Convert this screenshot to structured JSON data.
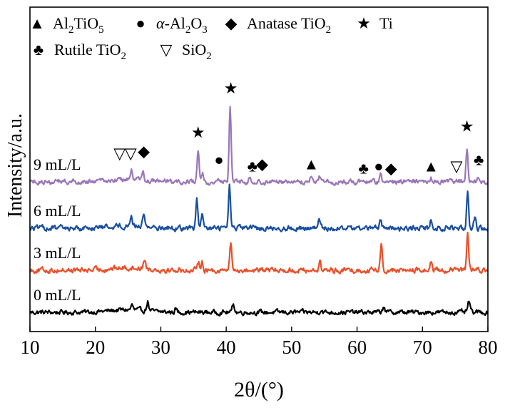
{
  "chart_data": {
    "type": "line",
    "xlabel": "2θ/(°)",
    "ylabel": "Intensity/a.u.",
    "xlim": [
      10,
      80
    ],
    "xticks": [
      10,
      20,
      30,
      40,
      50,
      60,
      70,
      80
    ],
    "yticks_shown": false,
    "legend": {
      "placement": "top-left",
      "entries": [
        {
          "symbol": "▲",
          "label": "Al2TiO5"
        },
        {
          "symbol": "●",
          "label": "α-Al2O3"
        },
        {
          "symbol": "◆",
          "label": "Anatase TiO2"
        },
        {
          "symbol": "★",
          "label": "Ti"
        },
        {
          "symbol": "♣",
          "label": "Rutile TiO2"
        },
        {
          "symbol": "▽",
          "label": "SiO2"
        }
      ]
    },
    "series": [
      {
        "name": "0 mL/L",
        "color": "#000000",
        "base": 0.0,
        "noise": 0.9,
        "peaks": [
          {
            "x": 25.6,
            "h": 2.2
          },
          {
            "x": 28.0,
            "h": 4.5
          },
          {
            "x": 32.3,
            "h": 1.6
          },
          {
            "x": 41.1,
            "h": 4.3
          },
          {
            "x": 54.5,
            "h": 1.4
          },
          {
            "x": 64.1,
            "h": 3.2
          },
          {
            "x": 77.1,
            "h": 5.5
          }
        ]
      },
      {
        "name": "3 mL/L",
        "color": "#e8502a",
        "base": 20.0,
        "noise": 1.0,
        "peaks": [
          {
            "x": 27.5,
            "h": 5.0
          },
          {
            "x": 35.8,
            "h": 4.0
          },
          {
            "x": 36.3,
            "h": 4.3
          },
          {
            "x": 40.7,
            "h": 13.0
          },
          {
            "x": 54.3,
            "h": 4.2
          },
          {
            "x": 63.7,
            "h": 12.5
          },
          {
            "x": 71.3,
            "h": 4.0
          },
          {
            "x": 76.9,
            "h": 17.0
          }
        ]
      },
      {
        "name": "6 mL/L",
        "color": "#1a4fa0",
        "base": 40.0,
        "noise": 1.0,
        "peaks": [
          {
            "x": 25.5,
            "h": 5.0
          },
          {
            "x": 27.4,
            "h": 6.5
          },
          {
            "x": 35.5,
            "h": 13.5
          },
          {
            "x": 36.3,
            "h": 6.0
          },
          {
            "x": 40.5,
            "h": 20.0
          },
          {
            "x": 54.2,
            "h": 3.8
          },
          {
            "x": 63.6,
            "h": 4.5
          },
          {
            "x": 71.3,
            "h": 3.6
          },
          {
            "x": 76.9,
            "h": 18.5
          },
          {
            "x": 78.0,
            "h": 5.0
          }
        ]
      },
      {
        "name": "9 mL/L",
        "color": "#9b77b8",
        "base": 62.0,
        "noise": 0.9,
        "peaks": [
          {
            "x": 25.5,
            "h": 4.5
          },
          {
            "x": 27.3,
            "h": 3.5
          },
          {
            "x": 35.7,
            "h": 14.5
          },
          {
            "x": 36.4,
            "h": 4.0
          },
          {
            "x": 38.8,
            "h": 3.0
          },
          {
            "x": 40.6,
            "h": 35.0
          },
          {
            "x": 43.6,
            "h": 2.5
          },
          {
            "x": 45.0,
            "h": 2.5
          },
          {
            "x": 53.0,
            "h": 3.0
          },
          {
            "x": 54.3,
            "h": 2.5
          },
          {
            "x": 63.6,
            "h": 3.0
          },
          {
            "x": 71.3,
            "h": 2.5
          },
          {
            "x": 76.8,
            "h": 16.0
          },
          {
            "x": 78.5,
            "h": 3.0
          }
        ]
      }
    ],
    "annotations": [
      {
        "symbol": "★",
        "x": 35.7,
        "level": 83
      },
      {
        "symbol": "★",
        "x": 40.7,
        "level": 104
      },
      {
        "symbol": "★",
        "x": 76.8,
        "level": 86
      },
      {
        "symbol": "▽",
        "x": 23.7,
        "level": 73
      },
      {
        "symbol": "▽",
        "x": 25.4,
        "level": 73
      },
      {
        "symbol": "◆",
        "x": 27.4,
        "level": 74
      },
      {
        "symbol": "●",
        "x": 38.9,
        "level": 70
      },
      {
        "symbol": "♣",
        "x": 44.0,
        "level": 67
      },
      {
        "symbol": "◆",
        "x": 45.5,
        "level": 68
      },
      {
        "symbol": "▲",
        "x": 53.0,
        "level": 68
      },
      {
        "symbol": "♣",
        "x": 61.0,
        "level": 66
      },
      {
        "symbol": "●",
        "x": 63.3,
        "level": 67
      },
      {
        "symbol": "◆",
        "x": 65.2,
        "level": 66
      },
      {
        "symbol": "▲",
        "x": 71.3,
        "level": 67
      },
      {
        "symbol": "▽",
        "x": 75.2,
        "level": 67
      },
      {
        "symbol": "♣",
        "x": 78.6,
        "level": 70
      }
    ]
  }
}
